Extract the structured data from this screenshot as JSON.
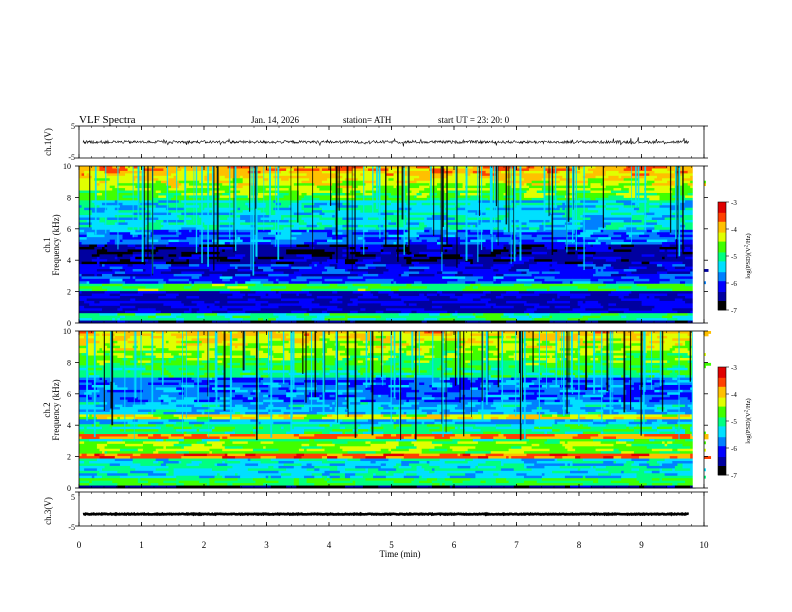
{
  "header": {
    "title": "VLF Spectra",
    "date": "Jan. 14, 2026",
    "station": "station= ATH",
    "start_ut": "start UT = 23: 20: 0"
  },
  "chart_data": [
    {
      "type": "line",
      "panel": "ch1-waveform",
      "ylabel": "ch.1(V)",
      "ylim": [
        -5,
        5
      ],
      "yticks": [
        "5",
        "-5"
      ],
      "series": [
        {
          "description_level_volts": 0.0
        }
      ]
    },
    {
      "type": "heatmap",
      "panel": "ch1-spectrogram",
      "ylabel_top": "ch.1",
      "ylabel": "Frequency (kHz)",
      "ylim": [
        0,
        10
      ],
      "yticks": [
        "0",
        "2",
        "4",
        "6",
        "8",
        "10"
      ],
      "colorbar": {
        "label": "log(PSD)(V^2/Hz)",
        "label_base": "log",
        "label_paren": "(PSD)(V",
        "label_sup": "2",
        "label_end": "/Hz)",
        "range": [
          -7,
          -3
        ],
        "ticks": [
          "-3",
          "-4",
          "-5",
          "-6",
          "-7"
        ]
      }
    },
    {
      "type": "heatmap",
      "panel": "ch2-spectrogram",
      "ylabel_top": "ch.2",
      "ylabel": "Frequency (kHz)",
      "ylim": [
        0,
        10
      ],
      "yticks": [
        "0",
        "2",
        "4",
        "6",
        "8",
        "10"
      ],
      "colorbar": {
        "label": "log(PSD)(V^2/Hz)",
        "label_base": "log",
        "label_paren": "(PSD)(V",
        "label_sup": "2",
        "label_end": "/Hz)",
        "range": [
          -7,
          -3
        ],
        "ticks": [
          "-3",
          "-4",
          "-5",
          "-6",
          "-7"
        ]
      }
    },
    {
      "type": "line",
      "panel": "ch3-waveform",
      "ylabel": "ch.3(V)",
      "ylim": [
        -5,
        5
      ],
      "yticks": [
        "5",
        "-5"
      ],
      "series": [
        {
          "description_level_volts": -1.5
        }
      ]
    }
  ],
  "x_axis": {
    "label": "Time (min)",
    "ticks": [
      "0",
      "1",
      "2",
      "3",
      "4",
      "5",
      "6",
      "7",
      "8",
      "9",
      "10"
    ],
    "range": [
      0,
      10
    ],
    "data_end": 9.82
  },
  "colors": {
    "colormap": [
      "#000000",
      "#0000a0",
      "#0000ff",
      "#0080ff",
      "#00e0ff",
      "#00ff80",
      "#40ff00",
      "#e0ff00",
      "#ffc000",
      "#ff4000",
      "#e00000",
      "#ffffff"
    ]
  }
}
